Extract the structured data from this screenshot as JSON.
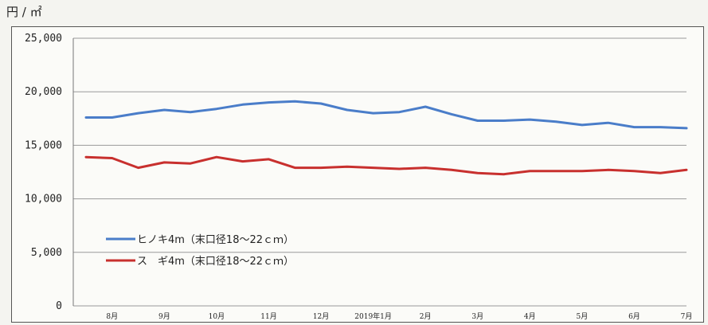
{
  "unit_label": "円 / ㎡",
  "chart_data": {
    "type": "line",
    "title": "",
    "xlabel": "",
    "ylabel": "円 / ㎡",
    "ylim": [
      0,
      25000
    ],
    "yticks": [
      "0",
      "5,000",
      "10,000",
      "15,000",
      "20,000",
      "25,000"
    ],
    "ytick_values": [
      0,
      5000,
      10000,
      15000,
      20000,
      25000
    ],
    "x_tick_labels": [
      "8月",
      "9月",
      "10月",
      "11月",
      "12月",
      "2019年1月",
      "2月",
      "3月",
      "4月",
      "5月",
      "6月",
      "7月"
    ],
    "grid": true,
    "legend_position": "lower-left",
    "series": [
      {
        "name": "ヒノキ4m（末口径18～22ｃｍ）",
        "color": "#4a7dc9",
        "values": [
          17600,
          17600,
          18000,
          18300,
          18100,
          18400,
          18800,
          19000,
          19100,
          18900,
          18300,
          18000,
          18100,
          18600,
          17900,
          17300,
          17300,
          17400,
          17200,
          16900,
          17100,
          16700,
          16700,
          16600
        ]
      },
      {
        "name": "ス　ギ4m（末口径18～22ｃｍ）",
        "color": "#c8302e",
        "values": [
          13900,
          13800,
          12900,
          13400,
          13300,
          13900,
          13500,
          13700,
          12900,
          12900,
          13000,
          12900,
          12800,
          12900,
          12700,
          12400,
          12300,
          12600,
          12600,
          12600,
          12700,
          12600,
          12400,
          12700
        ]
      }
    ]
  }
}
